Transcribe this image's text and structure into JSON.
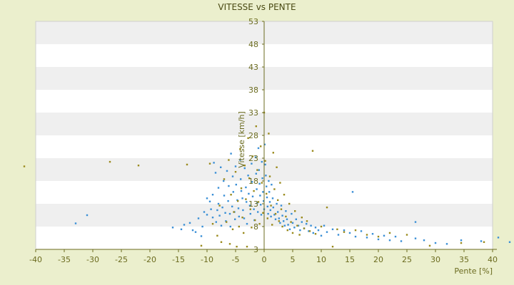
{
  "chart_data": {
    "type": "scatter",
    "title": "VITESSE vs PENTE",
    "xlabel": "Pente [%]",
    "ylabel": "Vitesse [km/h]",
    "xlim": [
      -40,
      40
    ],
    "ylim": [
      3,
      53
    ],
    "xticks": [
      "-40",
      "-35",
      "-30",
      "-25",
      "-20",
      "-15",
      "-10",
      "-5",
      "0",
      "5",
      "10",
      "15",
      "20",
      "25",
      "30",
      "35",
      "40"
    ],
    "yticks": [
      "3",
      "3",
      "8",
      "13",
      "18",
      "23",
      "28",
      "33",
      "38",
      "43",
      "48",
      "53"
    ],
    "grid": "horizontal bands",
    "colors": {
      "background": "#ebefcd",
      "plot_band_light": "#ffffff",
      "plot_band_dark": "#efefef",
      "axis": "#6b6b1f",
      "series_a": "#3a8fd6",
      "series_b": "#9a8a1c"
    },
    "series": [
      {
        "color": "#3a8fd6",
        "points": [
          [
            -33,
            8.7
          ],
          [
            -31,
            10.5
          ],
          [
            -16,
            7.8
          ],
          [
            -14.5,
            7.4
          ],
          [
            -14,
            8.4
          ],
          [
            -13,
            8.8
          ],
          [
            -12.5,
            7.2
          ],
          [
            -12,
            6.8
          ],
          [
            -11.5,
            9.8
          ],
          [
            -11,
            5.9
          ],
          [
            -10.8,
            8.0
          ],
          [
            -10.5,
            11.2
          ],
          [
            -10,
            10.6
          ],
          [
            -10,
            14.2
          ],
          [
            -9.5,
            13.5
          ],
          [
            -9.3,
            11.8
          ],
          [
            -9,
            15.0
          ],
          [
            -9,
            10.0
          ],
          [
            -8.8,
            22.0
          ],
          [
            -8.5,
            19.8
          ],
          [
            -8.4,
            9.0
          ],
          [
            -8.2,
            11.6
          ],
          [
            -8,
            16.5
          ],
          [
            -8,
            13.0
          ],
          [
            -7.8,
            10.4
          ],
          [
            -7.6,
            21.0
          ],
          [
            -7.5,
            8.2
          ],
          [
            -7.3,
            12.2
          ],
          [
            -7.1,
            18.0
          ],
          [
            -7,
            14.8
          ],
          [
            -6.8,
            11.0
          ],
          [
            -6.7,
            9.2
          ],
          [
            -6.5,
            20.2
          ],
          [
            -6.3,
            13.6
          ],
          [
            -6.2,
            16.9
          ],
          [
            -6,
            10.8
          ],
          [
            -5.9,
            8.0
          ],
          [
            -5.8,
            24.0
          ],
          [
            -5.6,
            12.4
          ],
          [
            -5.5,
            19.0
          ],
          [
            -5.4,
            15.6
          ],
          [
            -5.2,
            11.2
          ],
          [
            -5.1,
            9.6
          ],
          [
            -5,
            21.2
          ],
          [
            -4.9,
            17.2
          ],
          [
            -4.7,
            13.8
          ],
          [
            -4.5,
            12.0
          ],
          [
            -4.4,
            10.2
          ],
          [
            -4.2,
            22.6
          ],
          [
            -4.1,
            18.4
          ],
          [
            -4,
            15.8
          ],
          [
            -3.8,
            14.2
          ],
          [
            -3.7,
            11.6
          ],
          [
            -3.5,
            9.8
          ],
          [
            -3.4,
            20.8
          ],
          [
            -3.2,
            16.6
          ],
          [
            -3.1,
            13.4
          ],
          [
            -3,
            8.6
          ],
          [
            -2.8,
            19.2
          ],
          [
            -2.7,
            15.2
          ],
          [
            -2.5,
            12.6
          ],
          [
            -2.4,
            10.8
          ],
          [
            -2.2,
            21.8
          ],
          [
            -2.1,
            17.8
          ],
          [
            -2,
            14.6
          ],
          [
            -1.8,
            11.8
          ],
          [
            -1.7,
            9.4
          ],
          [
            -1.5,
            23.2
          ],
          [
            -1.4,
            19.6
          ],
          [
            -1.3,
            16.2
          ],
          [
            -1.2,
            13.2
          ],
          [
            -1.1,
            11.2
          ],
          [
            -1,
            25.2
          ],
          [
            -0.9,
            20.4
          ],
          [
            -0.8,
            17.4
          ],
          [
            -0.7,
            14.8
          ],
          [
            -0.6,
            12.8
          ],
          [
            -0.5,
            10.6
          ],
          [
            -0.4,
            22.2
          ],
          [
            -0.3,
            18.6
          ],
          [
            -0.2,
            15.6
          ],
          [
            -0.1,
            13.6
          ],
          [
            0,
            11.8
          ],
          [
            0.1,
            26.0
          ],
          [
            0.2,
            21.6
          ],
          [
            0.3,
            19.2
          ],
          [
            0.4,
            16.8
          ],
          [
            0.5,
            14.4
          ],
          [
            0.6,
            12.4
          ],
          [
            0.7,
            10.8
          ],
          [
            0.8,
            18.0
          ],
          [
            0.9,
            15.6
          ],
          [
            1.0,
            13.4
          ],
          [
            1.1,
            11.6
          ],
          [
            1.2,
            10.2
          ],
          [
            1.3,
            17.2
          ],
          [
            1.5,
            14.2
          ],
          [
            1.6,
            12.2
          ],
          [
            1.8,
            10.6
          ],
          [
            2.0,
            9.6
          ],
          [
            2.2,
            13.0
          ],
          [
            2.4,
            11.2
          ],
          [
            2.6,
            9.8
          ],
          [
            2.8,
            8.8
          ],
          [
            3.0,
            12.6
          ],
          [
            3.2,
            10.4
          ],
          [
            3.4,
            9.2
          ],
          [
            3.6,
            8.2
          ],
          [
            3.8,
            11.4
          ],
          [
            4.0,
            9.6
          ],
          [
            4.2,
            8.4
          ],
          [
            4.5,
            7.4
          ],
          [
            4.8,
            10.8
          ],
          [
            5.0,
            8.8
          ],
          [
            5.3,
            7.8
          ],
          [
            5.6,
            9.6
          ],
          [
            6.0,
            8.2
          ],
          [
            6.3,
            7.2
          ],
          [
            6.6,
            9.0
          ],
          [
            7.0,
            7.6
          ],
          [
            7.4,
            8.6
          ],
          [
            7.8,
            7.0
          ],
          [
            8.2,
            8.2
          ],
          [
            8.6,
            6.6
          ],
          [
            9.0,
            7.8
          ],
          [
            9.5,
            7.2
          ],
          [
            10.0,
            6.0
          ],
          [
            10.5,
            8.2
          ],
          [
            11.0,
            6.8
          ],
          [
            12.0,
            7.4
          ],
          [
            13.0,
            6.2
          ],
          [
            14.0,
            7.2
          ],
          [
            15.0,
            6.6
          ],
          [
            15.5,
            15.6
          ],
          [
            16.0,
            5.8
          ],
          [
            17.0,
            7.0
          ],
          [
            18.0,
            5.6
          ],
          [
            19.0,
            6.4
          ],
          [
            20.0,
            5.2
          ],
          [
            21.0,
            6.0
          ],
          [
            22.0,
            5.0
          ],
          [
            23.0,
            5.8
          ],
          [
            24.0,
            4.8
          ],
          [
            26.5,
            5.4
          ],
          [
            26.5,
            9.0
          ],
          [
            28.0,
            5.0
          ],
          [
            30.0,
            4.4
          ],
          [
            32.0,
            4.2
          ],
          [
            34.5,
            5.0
          ],
          [
            38.0,
            4.8
          ],
          [
            41.0,
            5.6
          ],
          [
            43.0,
            4.6
          ]
        ]
      },
      {
        "color": "#9a8a1c",
        "points": [
          [
            -42,
            21.2
          ],
          [
            -27,
            22.2
          ],
          [
            -22,
            21.4
          ],
          [
            -13.5,
            21.6
          ],
          [
            -11,
            3.8
          ],
          [
            -9.5,
            21.8
          ],
          [
            -9,
            8.6
          ],
          [
            -8.2,
            6.0
          ],
          [
            -7.8,
            12.6
          ],
          [
            -7.5,
            4.6
          ],
          [
            -7,
            18.4
          ],
          [
            -6.6,
            9.0
          ],
          [
            -6.2,
            22.6
          ],
          [
            -6,
            4.2
          ],
          [
            -5.8,
            15.0
          ],
          [
            -5.5,
            7.4
          ],
          [
            -5.3,
            11.2
          ],
          [
            -5.0,
            20.0
          ],
          [
            -4.8,
            3.6
          ],
          [
            -4.6,
            13.6
          ],
          [
            -4.4,
            8.0
          ],
          [
            -4.2,
            25.0
          ],
          [
            -4.0,
            16.4
          ],
          [
            -3.8,
            10.0
          ],
          [
            -3.6,
            6.6
          ],
          [
            -3.4,
            21.4
          ],
          [
            -3.2,
            14.0
          ],
          [
            -3.0,
            3.6
          ],
          [
            -2.8,
            27.4
          ],
          [
            -2.6,
            18.6
          ],
          [
            -2.4,
            11.8
          ],
          [
            -2.2,
            7.8
          ],
          [
            -2.0,
            23.4
          ],
          [
            -1.8,
            15.8
          ],
          [
            -1.6,
            9.4
          ],
          [
            -1.4,
            30.0
          ],
          [
            -1.2,
            20.4
          ],
          [
            -1.0,
            13.4
          ],
          [
            -0.8,
            8.6
          ],
          [
            -0.6,
            25.6
          ],
          [
            -0.4,
            17.6
          ],
          [
            -0.2,
            11.0
          ],
          [
            0,
            33.0
          ],
          [
            0.2,
            22.4
          ],
          [
            0.4,
            15.2
          ],
          [
            0.6,
            9.8
          ],
          [
            0.8,
            28.4
          ],
          [
            1.0,
            19.0
          ],
          [
            1.2,
            12.6
          ],
          [
            1.4,
            8.4
          ],
          [
            1.6,
            24.2
          ],
          [
            1.8,
            16.2
          ],
          [
            2.0,
            10.8
          ],
          [
            2.2,
            21.0
          ],
          [
            2.4,
            13.8
          ],
          [
            2.6,
            9.2
          ],
          [
            2.8,
            17.6
          ],
          [
            3.0,
            11.8
          ],
          [
            3.2,
            8.0
          ],
          [
            3.5,
            15.0
          ],
          [
            3.8,
            10.2
          ],
          [
            4.1,
            7.2
          ],
          [
            4.4,
            13.0
          ],
          [
            4.7,
            9.0
          ],
          [
            5.0,
            6.6
          ],
          [
            5.4,
            11.4
          ],
          [
            5.8,
            8.2
          ],
          [
            6.2,
            6.2
          ],
          [
            6.6,
            10.0
          ],
          [
            7.0,
            7.6
          ],
          [
            7.5,
            9.2
          ],
          [
            8.0,
            7.0
          ],
          [
            8.5,
            24.6
          ],
          [
            9.0,
            6.4
          ],
          [
            10.0,
            8.0
          ],
          [
            11.0,
            12.2
          ],
          [
            12.0,
            3.6
          ],
          [
            12.8,
            7.4
          ],
          [
            14.0,
            6.8
          ],
          [
            16.0,
            7.2
          ],
          [
            18.0,
            6.2
          ],
          [
            20.0,
            5.8
          ],
          [
            22.0,
            6.6
          ],
          [
            25.0,
            6.2
          ],
          [
            29.0,
            3.8
          ],
          [
            34.5,
            4.4
          ],
          [
            38.5,
            4.6
          ]
        ]
      }
    ]
  }
}
